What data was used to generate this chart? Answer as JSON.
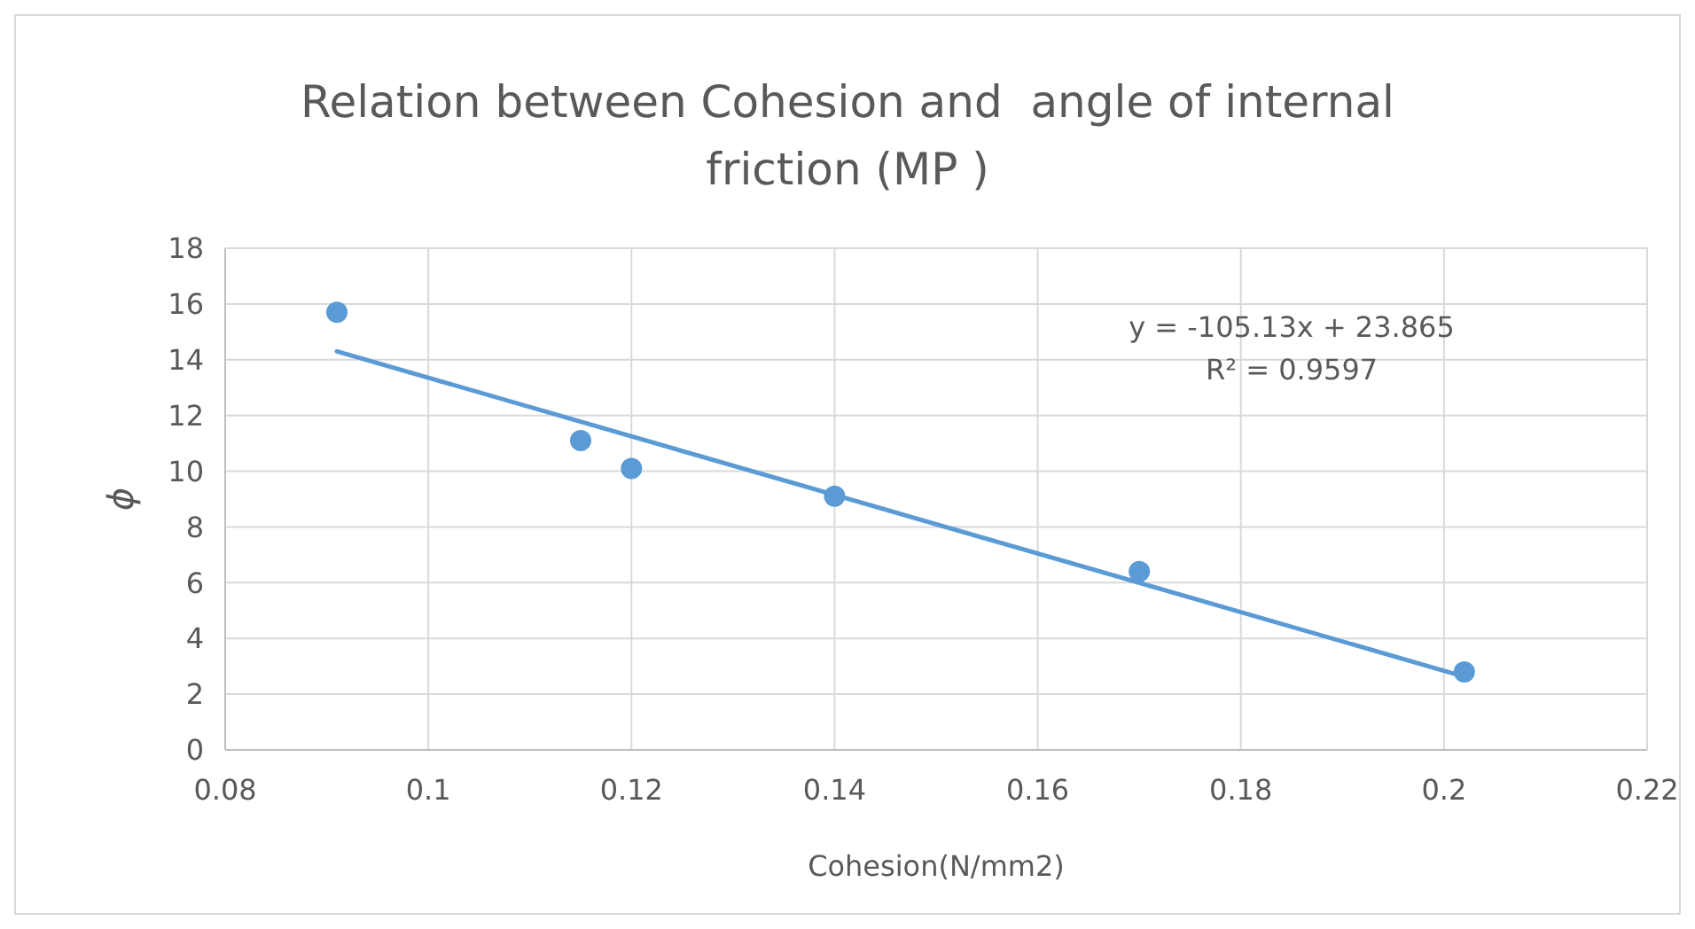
{
  "chart_data": {
    "type": "scatter",
    "title": "Relation between Cohesion and  angle of internal friction (MP )",
    "xlabel": "Cohesion(N/mm2)",
    "ylabel": "ϕ",
    "xlim": [
      0.08,
      0.22
    ],
    "xticks": [
      0.08,
      0.1,
      0.12,
      0.14,
      0.16,
      0.18,
      0.2,
      0.22
    ],
    "ylim": [
      0,
      18
    ],
    "yticks": [
      0,
      2,
      4,
      6,
      8,
      10,
      12,
      14,
      16,
      18
    ],
    "grid": true,
    "annotations": [
      "y = -105.13x + 23.865",
      "R² = 0.9597"
    ],
    "series": [
      {
        "color": "#5b9bd5",
        "marker": "circle",
        "x": [
          0.091,
          0.115,
          0.12,
          0.14,
          0.17,
          0.202
        ],
        "values": [
          15.7,
          11.1,
          10.1,
          9.1,
          6.4,
          2.8
        ]
      },
      {
        "type": "line",
        "color": "#5b9bd5",
        "marker": "none",
        "line_style": "solid",
        "x": [
          0.091,
          0.202
        ],
        "values": [
          14.3,
          2.63
        ]
      }
    ]
  }
}
